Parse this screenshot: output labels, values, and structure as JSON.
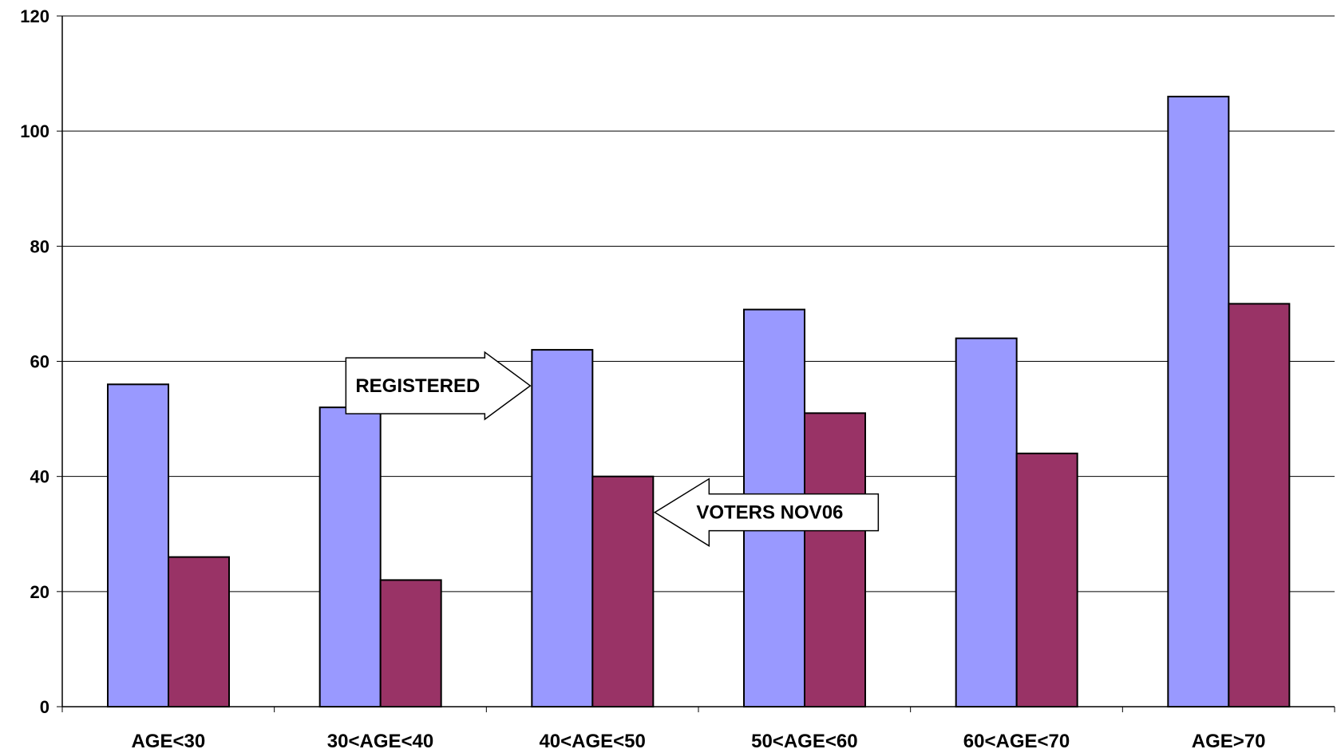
{
  "chart_data": {
    "type": "bar",
    "categories": [
      "AGE<30",
      "30<AGE<40",
      "40<AGE<50",
      "50<AGE<60",
      "60<AGE<70",
      "AGE>70"
    ],
    "series": [
      {
        "values": [
          56,
          52,
          62,
          69,
          64,
          106
        ],
        "color": "#9999ff"
      },
      {
        "values": [
          26,
          22,
          40,
          51,
          44,
          70
        ],
        "color": "#993366"
      }
    ],
    "ylim": [
      0,
      120
    ],
    "yticks": [
      0,
      20,
      40,
      60,
      80,
      100,
      120
    ],
    "grid": true,
    "annotations": [
      {
        "text": "REGISTERED",
        "direction": "right",
        "series": 0,
        "category": 2
      },
      {
        "text": "VOTERS NOV06",
        "direction": "left",
        "series": 1,
        "category": 2
      }
    ]
  }
}
